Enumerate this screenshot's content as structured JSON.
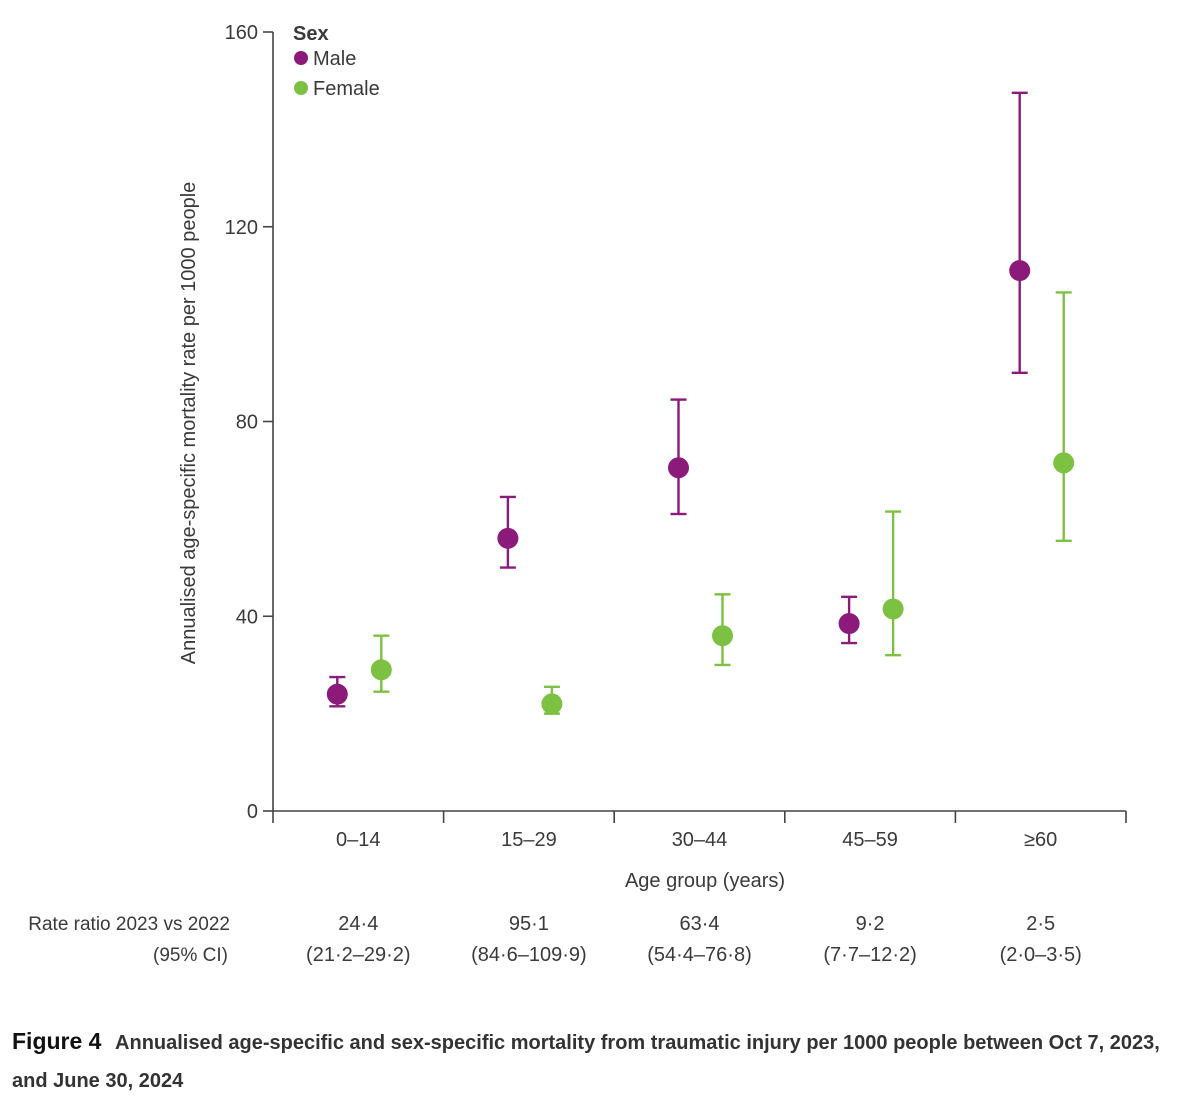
{
  "chart_data": {
    "type": "scatter",
    "title": "",
    "xlabel": "Age group (years)",
    "ylabel": "Annualised age-specific mortality rate per 1000 people",
    "categories": [
      "0–14",
      "15–29",
      "30–44",
      "45–59",
      "≥60"
    ],
    "ylim": [
      0,
      160
    ],
    "yticks": [
      0,
      40,
      80,
      120,
      160
    ],
    "grid": false,
    "legend": {
      "title": "Sex",
      "position": "top-left"
    },
    "series": [
      {
        "name": "Male",
        "color": "#8B1A7A",
        "values": [
          24,
          56,
          70.5,
          38.5,
          111
        ],
        "ci_low": [
          21.5,
          50,
          61,
          34.5,
          90
        ],
        "ci_high": [
          27.5,
          64.5,
          84.5,
          44,
          147.5
        ]
      },
      {
        "name": "Female",
        "color": "#7DC142",
        "values": [
          29,
          22,
          36,
          41.5,
          71.5
        ],
        "ci_low": [
          24.5,
          20,
          30,
          32,
          55.5
        ],
        "ci_high": [
          36,
          25.5,
          44.5,
          61.5,
          106.5
        ]
      }
    ],
    "rate_ratio": {
      "label_line1": "Rate ratio 2023 vs 2022",
      "label_line2": "(95% CI)",
      "values": [
        "24·4",
        "95·1",
        "63·4",
        "9·2",
        "2·5"
      ],
      "cis": [
        "(21·2–29·2)",
        "(84·6–109·9)",
        "(54·4–76·8)",
        "(7·7–12·2)",
        "(2·0–3·5)"
      ]
    }
  },
  "caption": {
    "label": "Figure 4",
    "text": "Annualised age-specific and sex-specific mortality from traumatic injury per 1000 people between Oct 7, 2023, and June 30, 2024"
  }
}
